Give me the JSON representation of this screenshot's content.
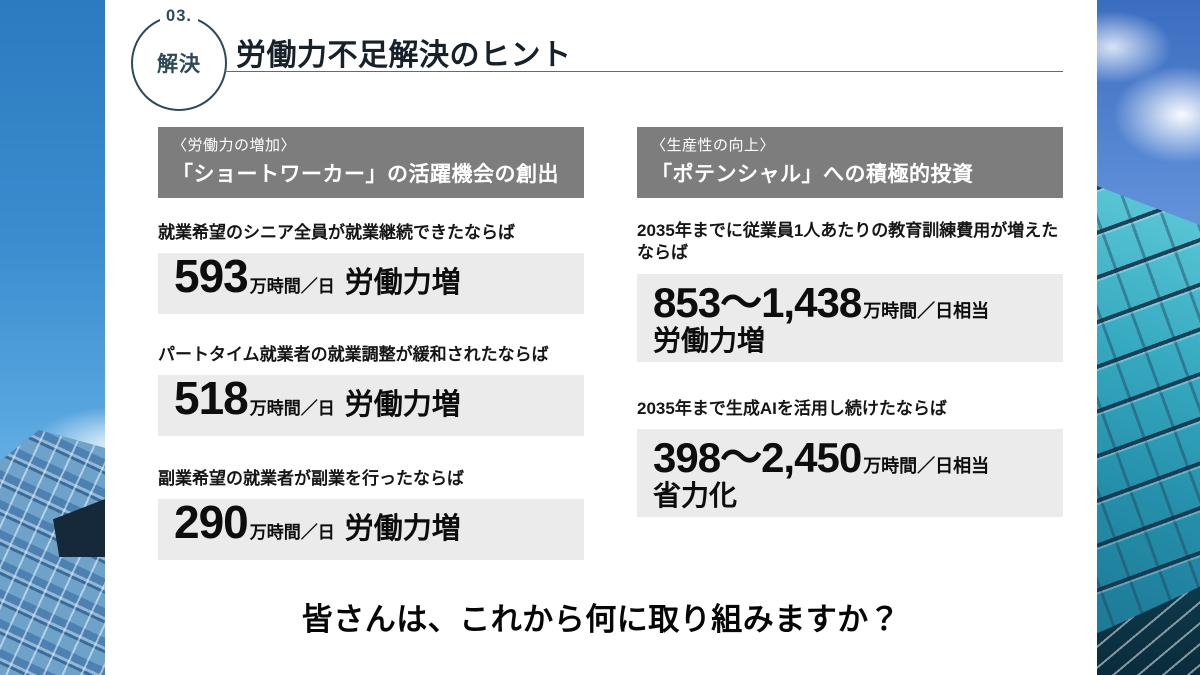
{
  "slide": {
    "badge": {
      "number": "03.",
      "label": "解決"
    },
    "title": "労働力不足解決のヒント",
    "message": "皆さんは、これから何に取り組みますか？"
  },
  "columns": [
    {
      "tag": "〈労働力の増加〉",
      "heading": "「ショートワーカー」の活躍機会の創出",
      "stats": [
        {
          "caption": "就業希望のシニア全員が就業継続できたならば",
          "value": "593",
          "unit": "万時間／日",
          "label": "労働力増"
        },
        {
          "caption": "パートタイム就業者の就業調整が緩和されたならば",
          "value": "518",
          "unit": "万時間／日",
          "label": "労働力増"
        },
        {
          "caption": "副業希望の就業者が副業を行ったならば",
          "value": "290",
          "unit": "万時間／日",
          "label": "労働力増"
        }
      ]
    },
    {
      "tag": "〈生産性の向上〉",
      "heading": "「ポテンシャル」への積極的投資",
      "stats": [
        {
          "caption": "2035年までに従業員1人あたりの教育訓練費用が増えたならば",
          "value": "853〜1,438",
          "unit": "万時間／日相当",
          "label": "労働力増"
        },
        {
          "caption": "2035年まで生成AIを活用し続けたならば",
          "value": "398〜2,450",
          "unit": "万時間／日相当",
          "label": "省力化"
        }
      ]
    }
  ],
  "colors": {
    "accent_dark": "#2d4a59",
    "header_gray": "#7d7d7d",
    "stat_box_bg": "#ebebeb",
    "sky_blue": "#3a8ccf",
    "glass_teal": "#2590ab"
  }
}
